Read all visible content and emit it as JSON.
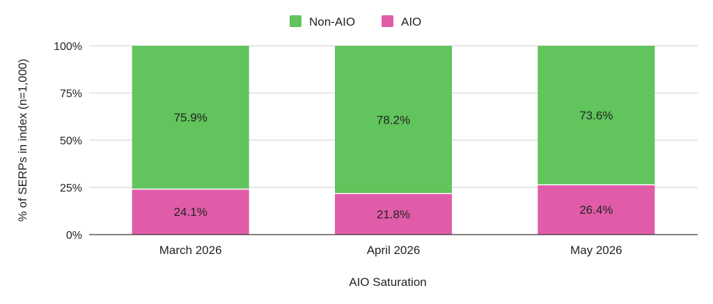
{
  "chart_data": {
    "type": "bar",
    "stacked": true,
    "categories": [
      "March 2026",
      "April 2026",
      "May 2026"
    ],
    "series": [
      {
        "name": "AIO",
        "color": "#e05ca8",
        "values": [
          24.1,
          21.8,
          26.4
        ],
        "labels": [
          "24.1%",
          "21.8%",
          "26.4%"
        ]
      },
      {
        "name": "Non-AIO",
        "color": "#61c45c",
        "values": [
          75.9,
          78.2,
          73.6
        ],
        "labels": [
          "75.9%",
          "78.2%",
          "73.6%"
        ]
      }
    ],
    "legend_order": [
      "Non-AIO",
      "AIO"
    ],
    "legend_position": "top",
    "xlabel": "AIO Saturation",
    "ylabel": "% of SERPs in index (n=1,000)",
    "ylim": [
      0,
      100
    ],
    "yticks": [
      {
        "value": 0,
        "label": "0%"
      },
      {
        "value": 25,
        "label": "25%"
      },
      {
        "value": 50,
        "label": "50%"
      },
      {
        "value": 75,
        "label": "75%"
      },
      {
        "value": 100,
        "label": "100%"
      }
    ],
    "grid": true
  }
}
